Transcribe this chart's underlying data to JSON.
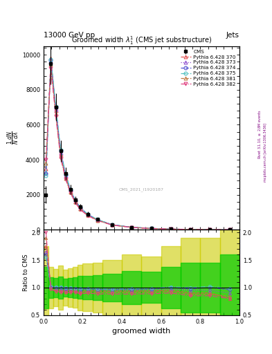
{
  "title": "Groomed width $\\lambda_1^1$ (CMS jet substructure)",
  "header_left": "13000 GeV pp",
  "header_right": "Jets",
  "xlabel": "groomed width",
  "ylabel_main": "$\\frac{1}{N}\\frac{dN}{d\\lambda}$",
  "ylabel_ratio": "Ratio to CMS",
  "watermark": "CMS_2021_I1920187",
  "rivet_label": "Rivet 3.1.10, $\\geq$ 2.8M events",
  "arxiv_label": "mcplots.cern.ch [arXiv:1306.3436]",
  "x_edges": [
    0.0,
    0.025,
    0.05,
    0.075,
    0.1,
    0.125,
    0.15,
    0.175,
    0.2,
    0.25,
    0.3,
    0.4,
    0.5,
    0.6,
    0.7,
    0.8,
    0.9,
    1.0
  ],
  "x_centers": [
    0.0125,
    0.0375,
    0.0625,
    0.0875,
    0.1125,
    0.1375,
    0.1625,
    0.1875,
    0.225,
    0.275,
    0.35,
    0.45,
    0.55,
    0.65,
    0.75,
    0.85,
    0.95
  ],
  "cms_y": [
    2000,
    9500,
    7000,
    4500,
    3200,
    2300,
    1700,
    1300,
    900,
    600,
    300,
    150,
    80,
    40,
    20,
    10,
    5
  ],
  "cms_yerr": [
    500,
    1200,
    800,
    600,
    350,
    270,
    210,
    180,
    130,
    90,
    50,
    30,
    15,
    10,
    6,
    3,
    2
  ],
  "pythia_370": [
    3500,
    9800,
    6800,
    4300,
    3000,
    2200,
    1600,
    1200,
    850,
    560,
    280,
    140,
    75,
    38,
    18,
    9,
    4
  ],
  "pythia_373": [
    3300,
    9600,
    6900,
    4400,
    3100,
    2250,
    1650,
    1250,
    870,
    575,
    285,
    143,
    77,
    39,
    19,
    9.5,
    4.5
  ],
  "pythia_374": [
    3200,
    9700,
    7000,
    4500,
    3150,
    2280,
    1670,
    1270,
    880,
    580,
    290,
    145,
    78,
    40,
    19.5,
    10,
    4.8
  ],
  "pythia_375": [
    3100,
    9750,
    7050,
    4550,
    3180,
    2300,
    1680,
    1280,
    890,
    585,
    292,
    147,
    79,
    40.5,
    20,
    10.2,
    4.9
  ],
  "pythia_381": [
    3800,
    9400,
    6600,
    4200,
    2950,
    2150,
    1580,
    1180,
    830,
    545,
    272,
    136,
    73,
    37,
    17.5,
    8.8,
    4.2
  ],
  "pythia_382": [
    4000,
    9200,
    6500,
    4100,
    2900,
    2100,
    1550,
    1150,
    810,
    530,
    265,
    132,
    71,
    36,
    17,
    8.5,
    4.0
  ],
  "line_styles": [
    "--",
    ":",
    "--",
    "-.",
    "--",
    "-."
  ],
  "line_colors": [
    "#e05050",
    "#9050d0",
    "#5050d0",
    "#50c0c0",
    "#c07840",
    "#e04080"
  ],
  "markers": [
    "^",
    "^",
    "o",
    "o",
    "^",
    "v"
  ],
  "fill_colors": [
    "#e05050",
    "#9050d0",
    "#5050d0",
    "#50c0c0",
    "#c07840",
    "#e04080"
  ],
  "labels": [
    "Pythia 6.428 370",
    "Pythia 6.428 373",
    "Pythia 6.428 374",
    "Pythia 6.428 375",
    "Pythia 6.428 381",
    "Pythia 6.428 382"
  ],
  "ylim_main": [
    0,
    10500
  ],
  "ylim_ratio": [
    0.5,
    2.05
  ],
  "yticks_main": [
    0,
    2000,
    4000,
    6000,
    8000,
    10000
  ],
  "yticks_ratio": [
    0.5,
    1.0,
    1.5,
    2.0
  ],
  "background_color": "#ffffff",
  "green_color": "#00cc00",
  "yellow_color": "#cccc00"
}
